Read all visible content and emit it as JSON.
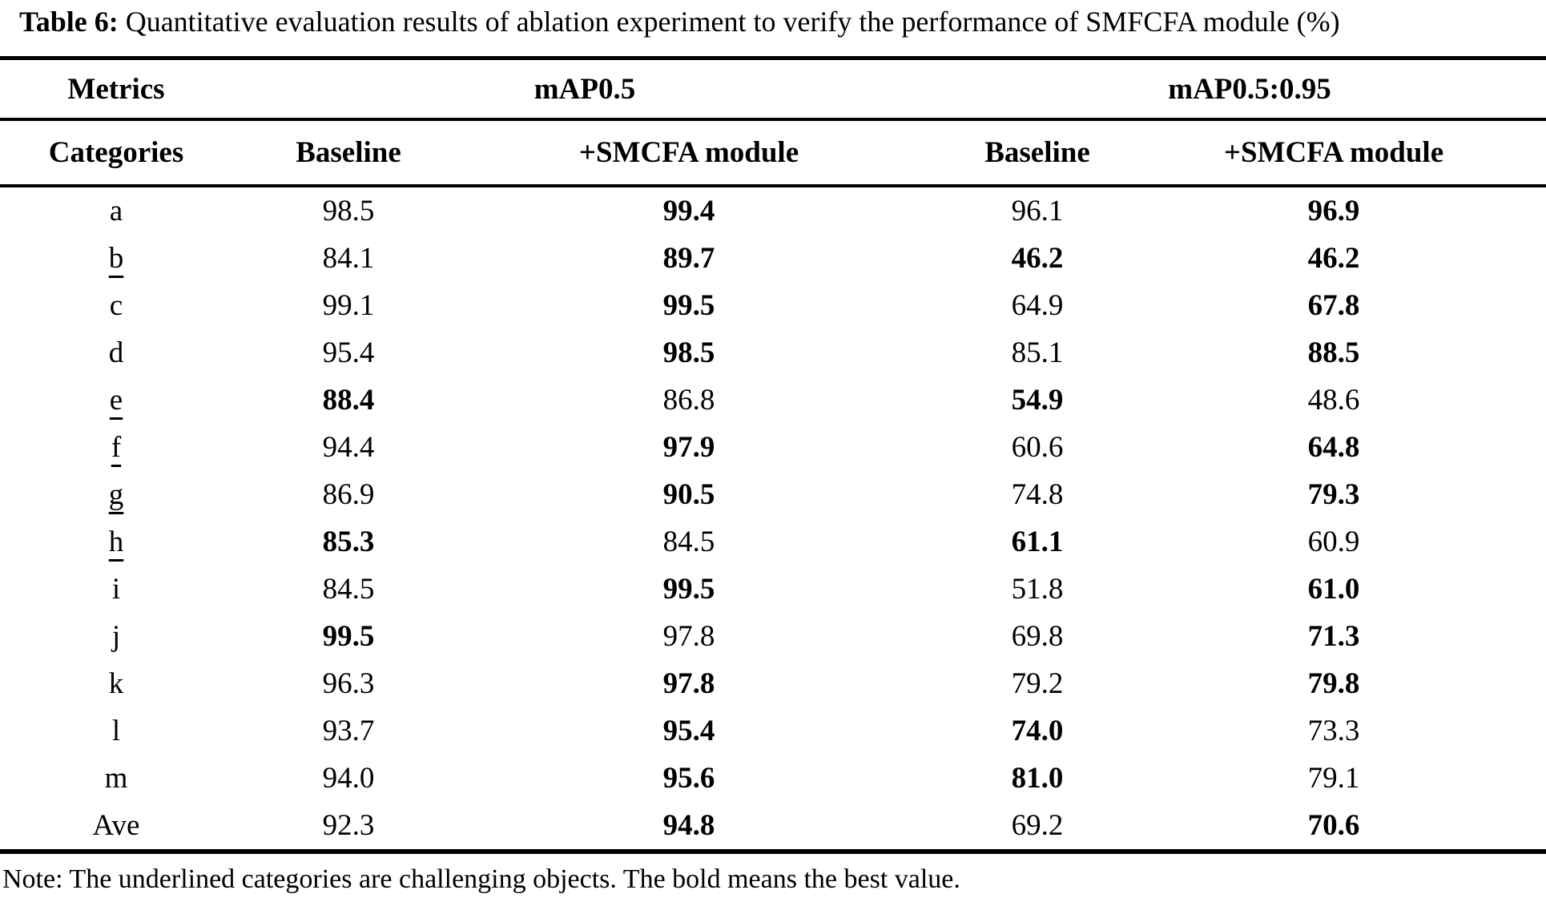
{
  "title": {
    "label": "Table 6:",
    "caption": "Quantitative evaluation results of ablation experiment to verify the performance of SMFCFA module (%)"
  },
  "table": {
    "header": {
      "metrics_label": "Metrics",
      "group_map05": "mAP0.5",
      "group_map05095": "mAP0.5:0.95",
      "categories_label": "Categories",
      "baseline1": "Baseline",
      "smcfa1": "+SMCFA module",
      "baseline2": "Baseline",
      "smcfa2": "+SMCFA module"
    },
    "rows": [
      {
        "category": "a",
        "underlined": false,
        "values": [
          "98.5",
          "99.4",
          "96.1",
          "96.9"
        ],
        "bold": [
          false,
          true,
          false,
          true
        ]
      },
      {
        "category": "b",
        "underlined": true,
        "values": [
          "84.1",
          "89.7",
          "46.2",
          "46.2"
        ],
        "bold": [
          false,
          true,
          true,
          true
        ]
      },
      {
        "category": "c",
        "underlined": false,
        "values": [
          "99.1",
          "99.5",
          "64.9",
          "67.8"
        ],
        "bold": [
          false,
          true,
          false,
          true
        ]
      },
      {
        "category": "d",
        "underlined": false,
        "values": [
          "95.4",
          "98.5",
          "85.1",
          "88.5"
        ],
        "bold": [
          false,
          true,
          false,
          true
        ]
      },
      {
        "category": "e",
        "underlined": true,
        "values": [
          "88.4",
          "86.8",
          "54.9",
          "48.6"
        ],
        "bold": [
          true,
          false,
          true,
          false
        ]
      },
      {
        "category": "f",
        "underlined": true,
        "values": [
          "94.4",
          "97.9",
          "60.6",
          "64.8"
        ],
        "bold": [
          false,
          true,
          false,
          true
        ]
      },
      {
        "category": "g",
        "underlined": true,
        "values": [
          "86.9",
          "90.5",
          "74.8",
          "79.3"
        ],
        "bold": [
          false,
          true,
          false,
          true
        ]
      },
      {
        "category": "h",
        "underlined": true,
        "values": [
          "85.3",
          "84.5",
          "61.1",
          "60.9"
        ],
        "bold": [
          true,
          false,
          true,
          false
        ]
      },
      {
        "category": "i",
        "underlined": false,
        "values": [
          "84.5",
          "99.5",
          "51.8",
          "61.0"
        ],
        "bold": [
          false,
          true,
          false,
          true
        ]
      },
      {
        "category": "j",
        "underlined": false,
        "values": [
          "99.5",
          "97.8",
          "69.8",
          "71.3"
        ],
        "bold": [
          true,
          false,
          false,
          true
        ]
      },
      {
        "category": "k",
        "underlined": false,
        "values": [
          "96.3",
          "97.8",
          "79.2",
          "79.8"
        ],
        "bold": [
          false,
          true,
          false,
          true
        ]
      },
      {
        "category": "l",
        "underlined": false,
        "values": [
          "93.7",
          "95.4",
          "74.0",
          "73.3"
        ],
        "bold": [
          false,
          true,
          true,
          false
        ]
      },
      {
        "category": "m",
        "underlined": false,
        "values": [
          "94.0",
          "95.6",
          "81.0",
          "79.1"
        ],
        "bold": [
          false,
          true,
          true,
          false
        ]
      },
      {
        "category": "Ave",
        "underlined": false,
        "values": [
          "92.3",
          "94.8",
          "69.2",
          "70.6"
        ],
        "bold": [
          false,
          true,
          false,
          true
        ]
      }
    ]
  },
  "note": "Note: The underlined categories are challenging objects. The bold means the best value."
}
